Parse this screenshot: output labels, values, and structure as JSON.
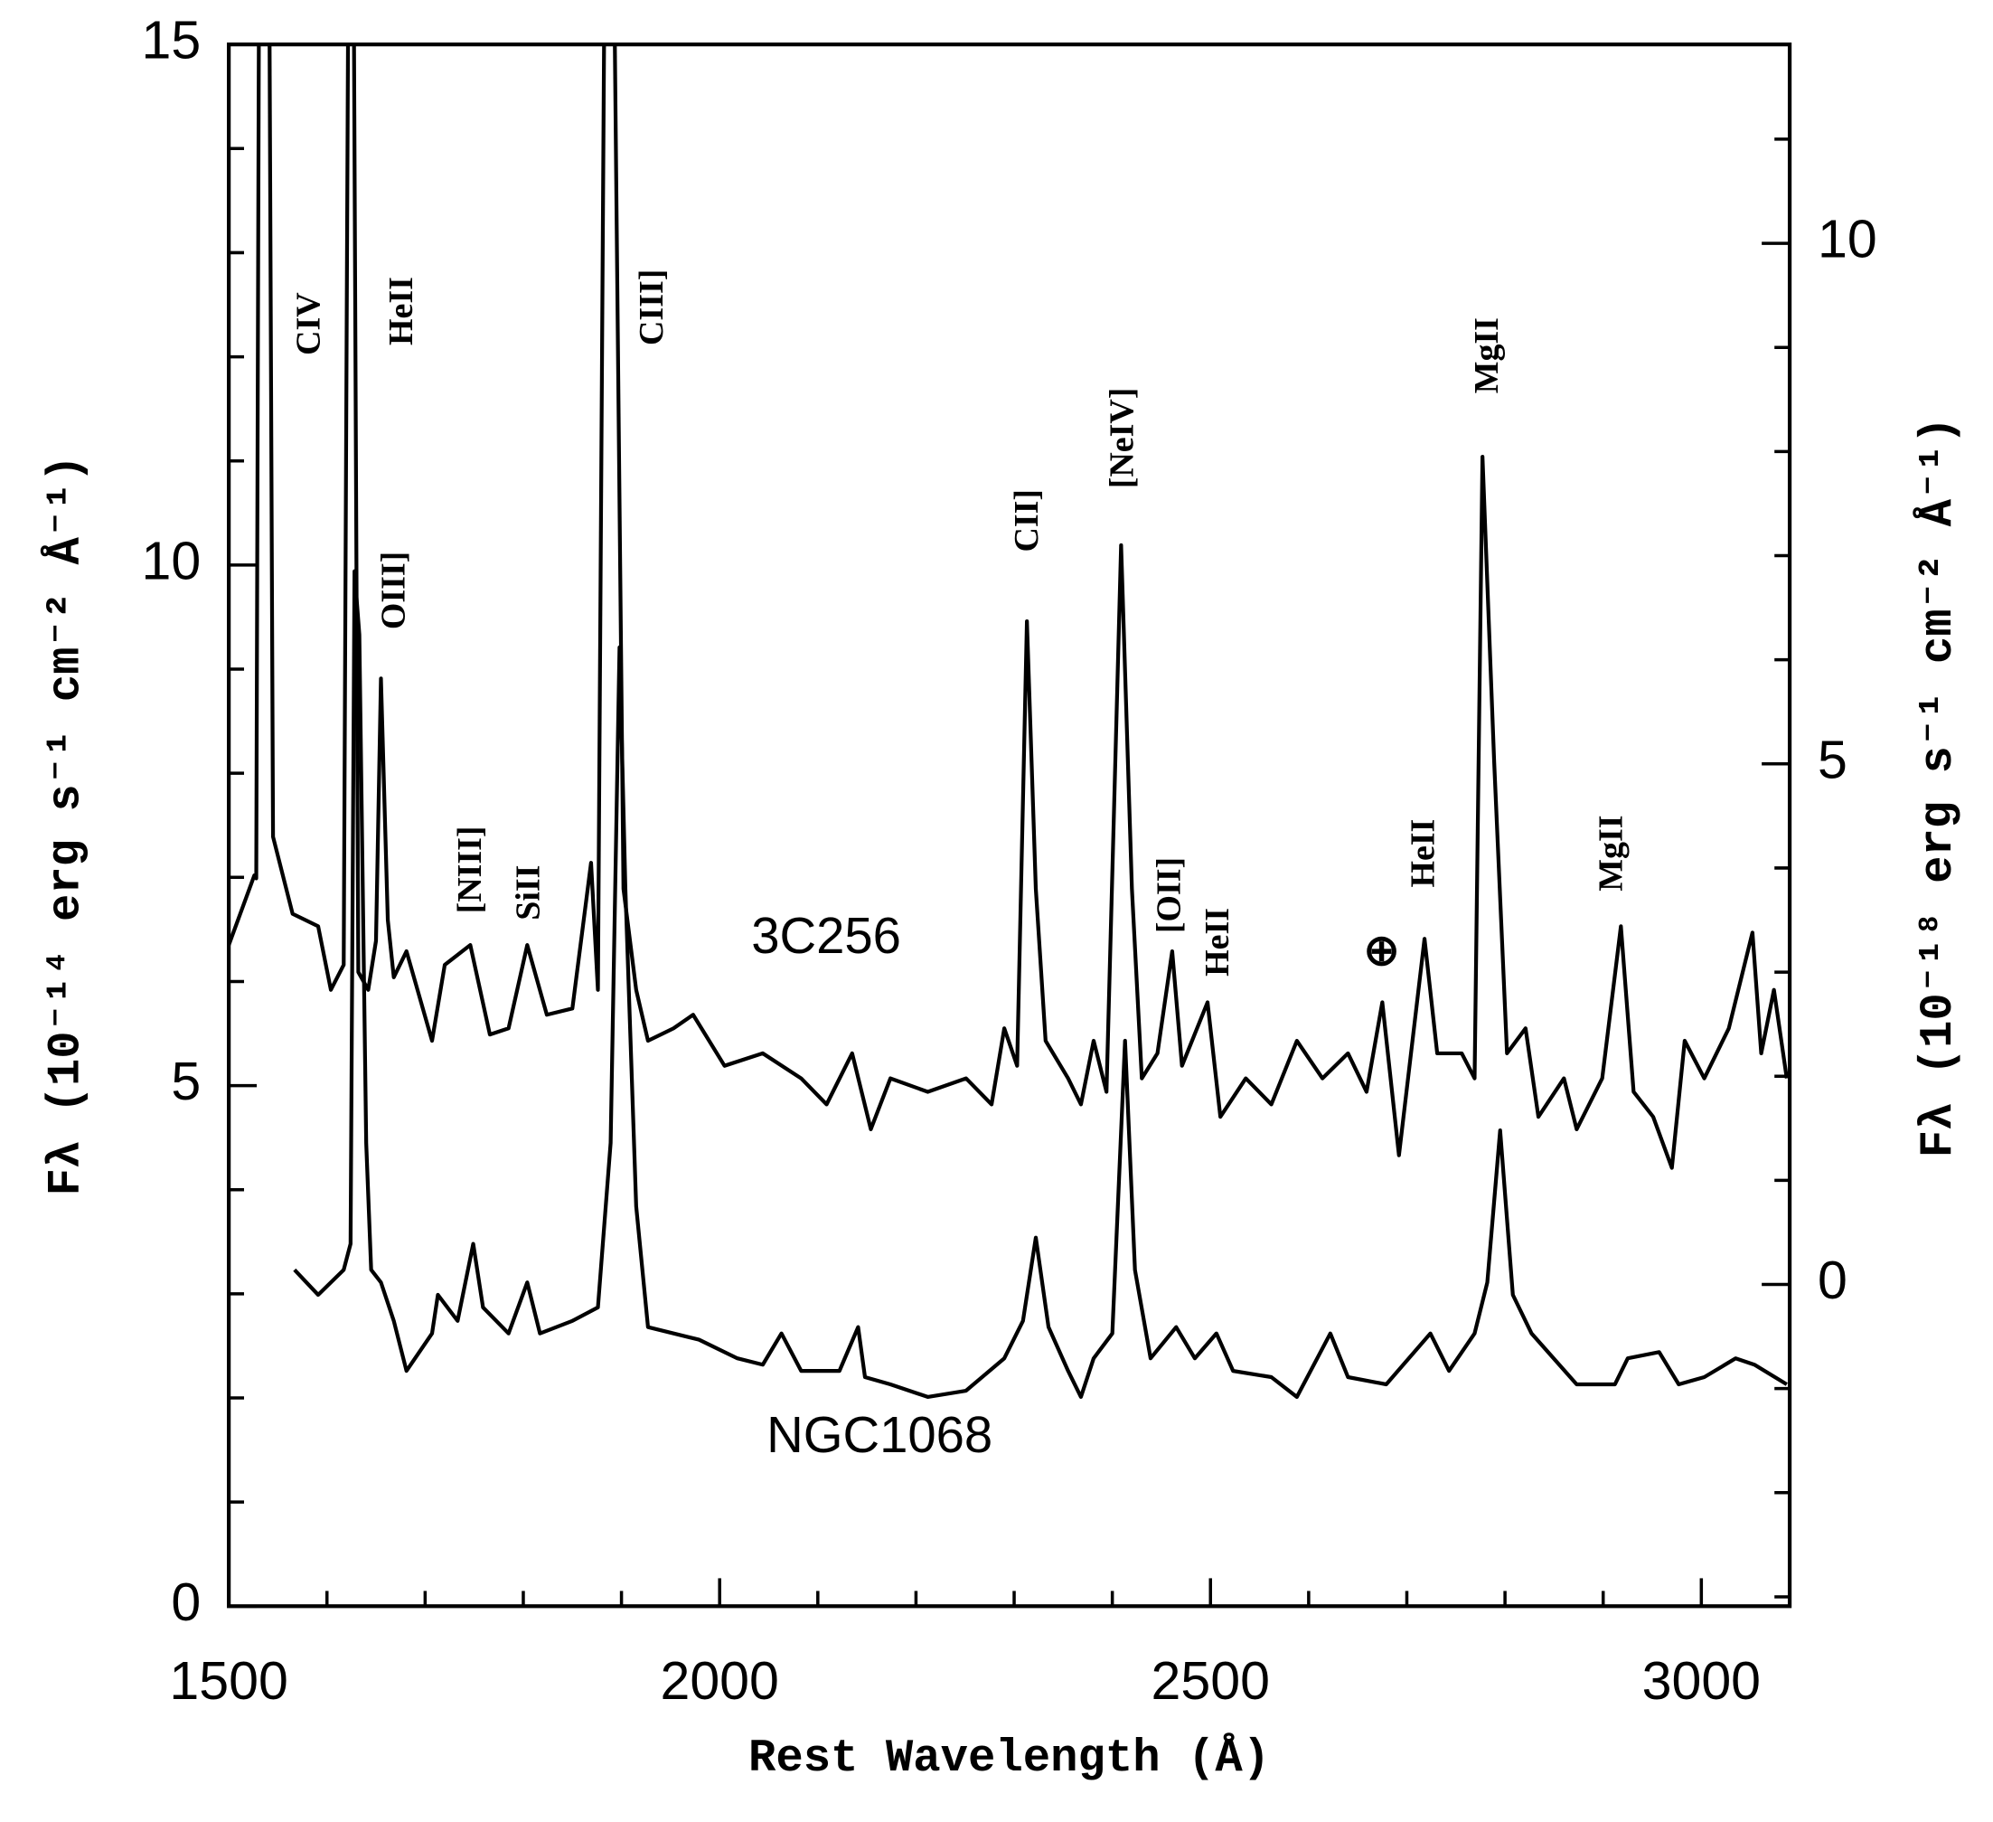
{
  "chart_data": {
    "type": "line",
    "xlabel": "Rest Wavelength (Å)",
    "ylabel": "Fλ  (10⁻¹⁴ erg s⁻¹ cm⁻² Å⁻¹)",
    "y2label": "Fλ  (10⁻¹⁸ erg s⁻¹ cm⁻² Å⁻¹)",
    "xlim": [
      1500,
      3090
    ],
    "xticks": [
      1500,
      2000,
      2500,
      3000
    ],
    "xminorticks": [
      1600,
      1700,
      1800,
      1900,
      2100,
      2200,
      2300,
      2400,
      2600,
      2700,
      2800,
      2900
    ],
    "ylim": [
      0,
      15
    ],
    "yticks": [
      0,
      5,
      10,
      15
    ],
    "yminorticks": [
      1,
      2,
      3,
      4,
      6,
      7,
      8,
      9,
      11,
      12,
      13,
      14
    ],
    "y2lim": [
      -3.09,
      11.91
    ],
    "y2ticks": [
      0,
      5,
      10
    ],
    "y2minorticks": [
      -3,
      -2,
      -1,
      1,
      2,
      3,
      4,
      6,
      7,
      8,
      9,
      11
    ],
    "series": [
      {
        "name": "3C256",
        "color": "#000000",
        "axis": "y2",
        "x": [
          1500,
          1526,
          1528,
          1531,
          1541,
          1545,
          1565,
          1591,
          1604,
          1617,
          1622,
          1627,
          1632,
          1642,
          1650,
          1655,
          1662,
          1668,
          1681,
          1707,
          1720,
          1746,
          1766,
          1785,
          1804,
          1824,
          1850,
          1869,
          1876,
          1883,
          1892,
          1902,
          1915,
          1927,
          1953,
          1973,
          2005,
          2044,
          2083,
          2109,
          2135,
          2154,
          2174,
          2212,
          2251,
          2277,
          2290,
          2303,
          2313,
          2322,
          2332,
          2355,
          2368,
          2381,
          2394,
          2409,
          2420,
          2430,
          2446,
          2461,
          2471,
          2497,
          2510,
          2536,
          2562,
          2588,
          2614,
          2640,
          2659,
          2675,
          2692,
          2718,
          2731,
          2756,
          2769,
          2777,
          2789,
          2802,
          2821,
          2834,
          2860,
          2873,
          2899,
          2918,
          2931,
          2951,
          2970,
          2983,
          3003,
          3028,
          3052,
          3061,
          3074,
          3087
        ],
        "values": [
          3.26,
          3.93,
          3.9,
          13,
          13,
          4.3,
          3.56,
          3.44,
          2.83,
          3.07,
          13,
          13,
          3.0,
          2.83,
          3.3,
          5.82,
          3.5,
          2.95,
          3.2,
          2.34,
          3.07,
          3.26,
          2.4,
          2.46,
          3.26,
          2.59,
          2.65,
          4.05,
          2.83,
          13,
          13,
          3.8,
          2.83,
          2.34,
          2.46,
          2.59,
          2.1,
          2.22,
          1.98,
          1.73,
          2.22,
          1.49,
          1.98,
          1.85,
          1.98,
          1.73,
          2.46,
          2.1,
          6.37,
          3.8,
          2.34,
          1.98,
          1.73,
          2.34,
          1.85,
          7.1,
          3.8,
          1.98,
          2.22,
          3.2,
          2.1,
          2.71,
          1.61,
          1.98,
          1.73,
          2.34,
          1.98,
          2.22,
          1.85,
          2.71,
          1.24,
          3.32,
          2.22,
          2.22,
          1.98,
          7.95,
          5.02,
          2.22,
          2.46,
          1.61,
          1.98,
          1.49,
          1.98,
          3.44,
          1.85,
          1.61,
          1.12,
          2.34,
          1.98,
          2.46,
          3.38,
          2.22,
          2.83,
          1.98
        ]
      },
      {
        "name": "NGC1068",
        "color": "#000000",
        "axis": "y",
        "x": [
          1567,
          1591,
          1617,
          1624,
          1628,
          1633,
          1640,
          1645,
          1655,
          1668,
          1681,
          1707,
          1713,
          1733,
          1749,
          1759,
          1785,
          1804,
          1817,
          1850,
          1876,
          1889,
          1898,
          1904,
          1915,
          1927,
          1979,
          2018,
          2044,
          2063,
          2083,
          2122,
          2141,
          2148,
          2174,
          2212,
          2251,
          2290,
          2309,
          2322,
          2335,
          2355,
          2368,
          2381,
          2400,
          2413,
          2423,
          2439,
          2465,
          2484,
          2506,
          2523,
          2562,
          2588,
          2622,
          2640,
          2679,
          2724,
          2743,
          2769,
          2782,
          2795,
          2808,
          2827,
          2873,
          2912,
          2925,
          2957,
          2977,
          3003,
          3035,
          3054,
          3087
        ],
        "values": [
          3.23,
          2.99,
          3.23,
          3.48,
          9.94,
          9.33,
          4.45,
          3.23,
          3.11,
          2.74,
          2.26,
          2.62,
          2.99,
          2.74,
          3.48,
          2.87,
          2.62,
          3.11,
          2.62,
          2.74,
          2.87,
          4.45,
          9.21,
          6.89,
          3.84,
          2.68,
          2.56,
          2.38,
          2.32,
          2.62,
          2.26,
          2.26,
          2.68,
          2.2,
          2.13,
          2.01,
          2.07,
          2.38,
          2.74,
          3.54,
          2.68,
          2.26,
          2.01,
          2.38,
          2.62,
          5.43,
          3.23,
          2.38,
          2.68,
          2.38,
          2.62,
          2.26,
          2.2,
          2.01,
          2.62,
          2.2,
          2.13,
          2.62,
          2.26,
          2.62,
          3.11,
          4.57,
          2.99,
          2.62,
          2.13,
          2.13,
          2.38,
          2.44,
          2.13,
          2.2,
          2.38,
          2.32,
          2.13
        ]
      }
    ],
    "annotations": [
      "CIV",
      "HeII",
      "OIII]",
      "[NIII]",
      "SiII",
      "CIII]",
      "CII]",
      "[NeIV]",
      "[OII]",
      "HeII",
      "⊕",
      "HeII",
      "MgII",
      "MgII"
    ]
  }
}
